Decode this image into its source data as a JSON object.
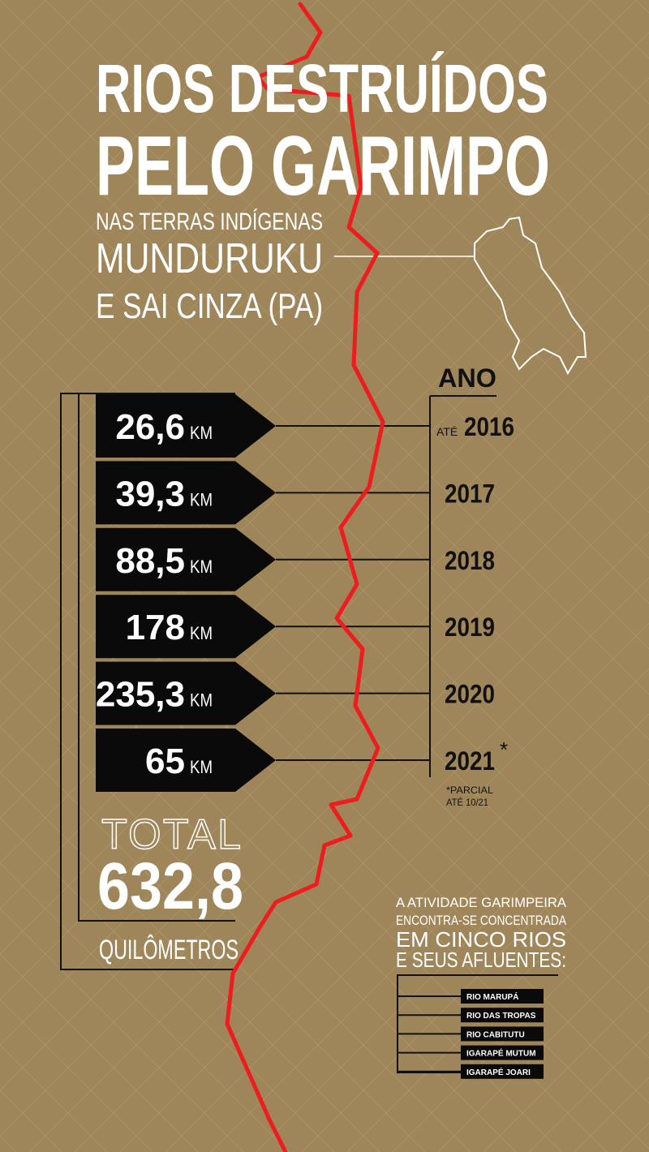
{
  "header": {
    "title_lines": [
      "RIOS DESTRUÍDOS",
      "PELO GARIMPO"
    ],
    "subtitle_lines": [
      "NAS TERRAS INDÍGENAS",
      "MUNDURUKU",
      "E SAI CINZA (PA)"
    ]
  },
  "year_heading": "ANO",
  "unit": "KM",
  "rows": [
    {
      "value": "26,6",
      "year_prefix": "ATÉ",
      "year": "2016"
    },
    {
      "value": "39,3",
      "year": "2017"
    },
    {
      "value": "88,5",
      "year": "2018"
    },
    {
      "value": "178",
      "year": "2019"
    },
    {
      "value": "235,3",
      "year": "2020"
    },
    {
      "value": "65",
      "year": "2021",
      "mark": "*"
    }
  ],
  "footnote_lines": [
    "*PARCIAL",
    "ATÉ 10/21"
  ],
  "total": {
    "label": "TOTAL",
    "value": "632,8",
    "unit": "QUILÔMETROS"
  },
  "note_lines": [
    "A ATIVIDADE GARIMPEIRA",
    "ENCONTRA-SE CONCENTRADA",
    "EM CINCO RIOS",
    "E SEUS AFLUENTES:"
  ],
  "rivers": [
    "RIO MARUPÁ",
    "RIO DAS TROPAS",
    "RIO CABITUTU",
    "IGARAPÉ MUTUM",
    "IGARAPÉ JOARI"
  ]
}
